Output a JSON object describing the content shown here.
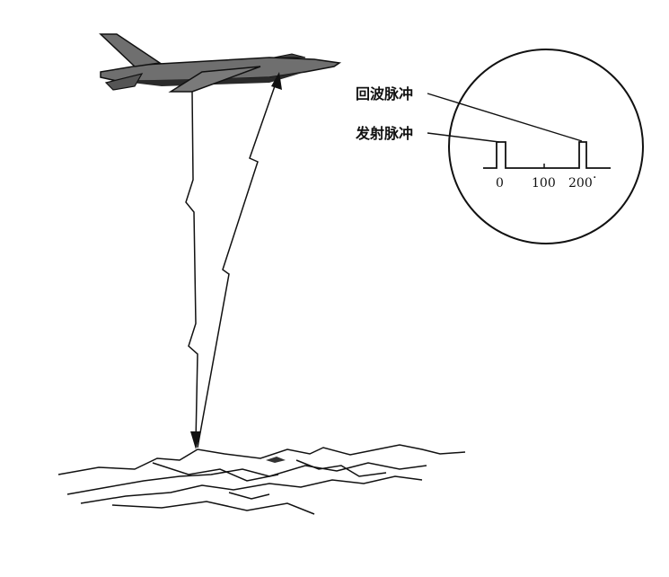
{
  "labels": {
    "echo_pulse": "回波脉冲",
    "transmit_pulse": "发射脉冲"
  },
  "scope": {
    "ticks": [
      "0",
      "100",
      "200"
    ]
  },
  "colors": {
    "ink": "#111111",
    "aircraft_body": "#6f6f6f",
    "aircraft_shadow": "#2a2a2a",
    "paper": "#ffffff"
  },
  "icons": {
    "aircraft": "jet-aircraft-icon",
    "terrain": "terrain-icon"
  }
}
